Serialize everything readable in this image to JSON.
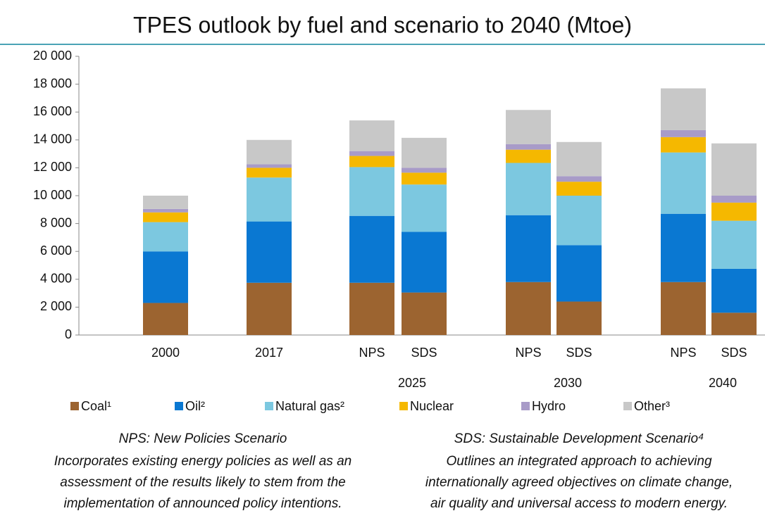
{
  "chart_data": {
    "type": "stacked_bar",
    "title": "TPES outlook by fuel and scenario to 2040 (Mtoe)",
    "categories": [
      "2000",
      "2017",
      "NPS",
      "SDS",
      "NPS",
      "SDS",
      "NPS",
      "SDS"
    ],
    "groups": [
      null,
      null,
      "2025",
      "2025",
      "2030",
      "2030",
      "2040",
      "2040"
    ],
    "series": [
      {
        "name": "Coal¹",
        "color": "#9c6430",
        "values": [
          2300,
          3750,
          3750,
          3050,
          3800,
          2400,
          3800,
          1600
        ]
      },
      {
        "name": "Oil²",
        "color": "#0a78d2",
        "values": [
          3700,
          4400,
          4800,
          4350,
          4800,
          4050,
          4900,
          3150
        ]
      },
      {
        "name": "Natural gas²",
        "color": "#7cc8e0",
        "values": [
          2100,
          3150,
          3500,
          3400,
          3750,
          3550,
          4400,
          3450
        ]
      },
      {
        "name": "Nuclear",
        "color": "#f5b800",
        "values": [
          700,
          700,
          800,
          850,
          950,
          1000,
          1100,
          1300
        ]
      },
      {
        "name": "Hydro",
        "color": "#a89bc8",
        "values": [
          250,
          250,
          350,
          350,
          400,
          400,
          500,
          500
        ]
      },
      {
        "name": "Other³",
        "color": "#c8c8c8",
        "values": [
          950,
          1750,
          2200,
          2150,
          2450,
          2450,
          3000,
          3750
        ]
      }
    ],
    "ylim": [
      0,
      20000
    ],
    "yticks": [
      0,
      {
        "value": 2000,
        "label": "2 000"
      },
      {
        "value": 4000,
        "label": "4 000"
      },
      {
        "value": 6000,
        "label": "6 000"
      },
      {
        "value": 8000,
        "label": "8 000"
      },
      {
        "value": 10000,
        "label": "10 000"
      },
      {
        "value": 12000,
        "label": "12 000"
      },
      {
        "value": 14000,
        "label": "14 000"
      },
      {
        "value": 16000,
        "label": "16 000"
      },
      {
        "value": 18000,
        "label": "18 000"
      },
      {
        "value": 20000,
        "label": "20 000"
      }
    ],
    "notes": [
      {
        "heading": "NPS: New Policies Scenario",
        "lines": [
          "Incorporates existing energy policies as well as an",
          "assessment of the results likely to stem from the",
          "implementation of announced policy intentions."
        ]
      },
      {
        "heading": "SDS: Sustainable Development Scenario⁴",
        "lines": [
          "Outlines an integrated approach to achieving",
          "internationally agreed objectives on climate change,",
          "air quality and universal access to modern energy."
        ]
      }
    ]
  }
}
